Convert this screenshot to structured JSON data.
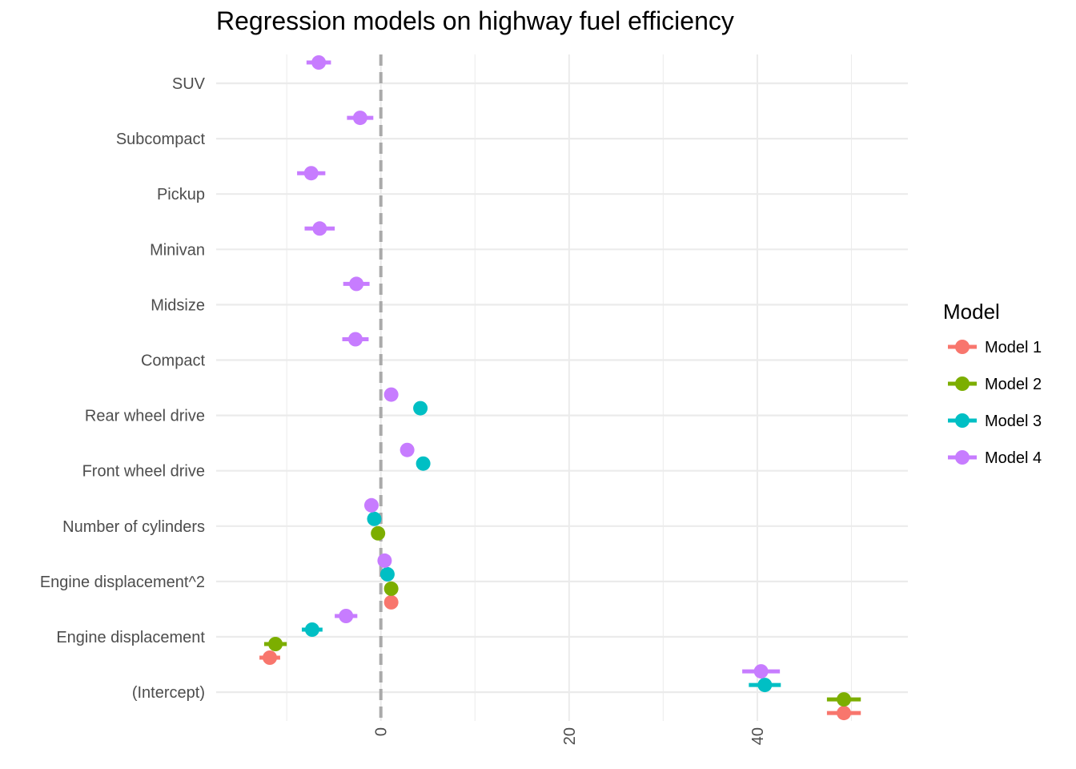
{
  "chart_data": {
    "type": "scatter",
    "title": "Regression models on highway fuel efficiency",
    "xlabel": "",
    "ylabel": "",
    "xlim": [
      -17.5,
      56
    ],
    "x_ticks": [
      0,
      20,
      40
    ],
    "x_tick_labels": [
      "0",
      "20",
      "40"
    ],
    "grid": true,
    "reference_line": {
      "x": 0,
      "style": "dashed",
      "color": "#aaaaaa"
    },
    "legend": {
      "title": "Model",
      "position": "right"
    },
    "categories": [
      "(Intercept)",
      "Engine displacement",
      "Engine displacement^2",
      "Number of cylinders",
      "Front wheel drive",
      "Rear wheel drive",
      "Compact",
      "Midsize",
      "Minivan",
      "Pickup",
      "Subcompact",
      "SUV"
    ],
    "series": [
      {
        "name": "Model 1",
        "color": "#F8766D",
        "points": [
          {
            "term": "(Intercept)",
            "estimate": 49.2,
            "low": 47.4,
            "high": 51.0
          },
          {
            "term": "Engine displacement",
            "estimate": -11.8,
            "low": -12.9,
            "high": -10.7
          },
          {
            "term": "Engine displacement^2",
            "estimate": 1.1,
            "low": 0.8,
            "high": 1.4
          }
        ]
      },
      {
        "name": "Model 2",
        "color": "#7CAE00",
        "points": [
          {
            "term": "(Intercept)",
            "estimate": 49.2,
            "low": 47.4,
            "high": 51.0
          },
          {
            "term": "Engine displacement",
            "estimate": -11.2,
            "low": -12.4,
            "high": -10.0
          },
          {
            "term": "Engine displacement^2",
            "estimate": 1.1,
            "low": 0.8,
            "high": 1.4
          },
          {
            "term": "Number of cylinders",
            "estimate": -0.3,
            "low": -0.6,
            "high": 0.0
          }
        ]
      },
      {
        "name": "Model 3",
        "color": "#00BFC4",
        "points": [
          {
            "term": "(Intercept)",
            "estimate": 40.8,
            "low": 39.1,
            "high": 42.5
          },
          {
            "term": "Engine displacement",
            "estimate": -7.3,
            "low": -8.4,
            "high": -6.2
          },
          {
            "term": "Engine displacement^2",
            "estimate": 0.7,
            "low": 0.4,
            "high": 1.0
          },
          {
            "term": "Number of cylinders",
            "estimate": -0.7,
            "low": -1.0,
            "high": -0.4
          },
          {
            "term": "Front wheel drive",
            "estimate": 4.5,
            "low": 4.2,
            "high": 4.8
          },
          {
            "term": "Rear wheel drive",
            "estimate": 4.2,
            "low": 3.9,
            "high": 4.5
          }
        ]
      },
      {
        "name": "Model 4",
        "color": "#C77CFF",
        "points": [
          {
            "term": "(Intercept)",
            "estimate": 40.4,
            "low": 38.4,
            "high": 42.4
          },
          {
            "term": "Engine displacement",
            "estimate": -3.7,
            "low": -4.9,
            "high": -2.5
          },
          {
            "term": "Engine displacement^2",
            "estimate": 0.4,
            "low": 0.1,
            "high": 0.7
          },
          {
            "term": "Number of cylinders",
            "estimate": -1.0,
            "low": -1.3,
            "high": -0.7
          },
          {
            "term": "Front wheel drive",
            "estimate": 2.8,
            "low": 2.5,
            "high": 3.1
          },
          {
            "term": "Rear wheel drive",
            "estimate": 1.1,
            "low": 0.8,
            "high": 1.4
          },
          {
            "term": "Compact",
            "estimate": -2.7,
            "low": -4.1,
            "high": -1.3
          },
          {
            "term": "Midsize",
            "estimate": -2.6,
            "low": -4.0,
            "high": -1.2
          },
          {
            "term": "Minivan",
            "estimate": -6.5,
            "low": -8.1,
            "high": -4.9
          },
          {
            "term": "Pickup",
            "estimate": -7.4,
            "low": -8.9,
            "high": -5.9
          },
          {
            "term": "Subcompact",
            "estimate": -2.2,
            "low": -3.6,
            "high": -0.8
          },
          {
            "term": "SUV",
            "estimate": -6.6,
            "low": -7.9,
            "high": -5.3
          }
        ]
      }
    ]
  }
}
